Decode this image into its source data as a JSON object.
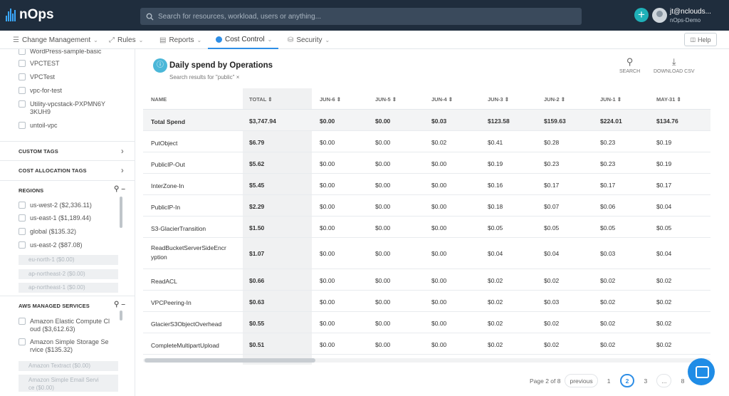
{
  "app": {
    "logo_text": "nOps"
  },
  "topbar": {
    "search_placeholder": "Search for resources, workload, users or anything...",
    "user_name": "jt@nclouds...",
    "user_org": "nOps-Demo"
  },
  "nav": {
    "items": [
      {
        "label": "Change Management"
      },
      {
        "label": "Rules"
      },
      {
        "label": "Reports"
      },
      {
        "label": "Cost Control"
      },
      {
        "label": "Security"
      }
    ],
    "help_label": "Help"
  },
  "sidebar": {
    "vpc_items": [
      {
        "label": "WordPress-sample-basic"
      },
      {
        "label": "VPCTEST"
      },
      {
        "label": "VPCTest"
      },
      {
        "label": "vpc-for-test"
      },
      {
        "label": "Utility-vpcstack-PXPMN6Y",
        "label2": "3KUH9"
      },
      {
        "label": "untoil-vpc"
      }
    ],
    "custom_tags_label": "CUSTOM TAGS",
    "cost_allocation_tags_label": "COST ALLOCATION TAGS",
    "regions_label": "REGIONS",
    "regions": [
      {
        "label": "us-west-2 ($2,336.11)"
      },
      {
        "label": "us-east-1 ($1,189.44)"
      },
      {
        "label": "global ($135.32)"
      },
      {
        "label": "us-east-2 ($87.08)"
      }
    ],
    "regions_dim": [
      {
        "label": "eu-north-1 ($0.00)"
      },
      {
        "label": "ap-northeast-2 ($0.00)"
      },
      {
        "label": "ap-northeast-1 ($0.00)"
      }
    ],
    "aws_services_label": "AWS MANAGED SERVICES",
    "services": [
      {
        "label": "Amazon Elastic Compute Cl",
        "label2": "oud ($3,612.63)"
      },
      {
        "label": "Amazon Simple Storage Se",
        "label2": "rvice ($135.32)"
      }
    ],
    "services_dim": [
      {
        "label": "Amazon Textract ($0.00)"
      },
      {
        "label": "Amazon Simple Email Servi",
        "label2": "ce ($0.00)"
      }
    ]
  },
  "main": {
    "title": "Daily spend by Operations",
    "subtitle": "Search results for \"public\" ×",
    "search_label": "SEARCH",
    "download_label": "DOWNLOAD CSV",
    "columns": [
      "NAME",
      "TOTAL",
      "JUN-6",
      "JUN-5",
      "JUN-4",
      "JUN-3",
      "JUN-2",
      "JUN-1",
      "MAY-31"
    ],
    "rows": [
      {
        "name": "Total Spend",
        "name2": "",
        "cells": [
          "$3,747.94",
          "$0.00",
          "$0.00",
          "$0.03",
          "$123.58",
          "$159.63",
          "$224.01",
          "$134.76"
        ]
      },
      {
        "name": "PutObject",
        "name2": "",
        "cells": [
          "$6.79",
          "$0.00",
          "$0.00",
          "$0.02",
          "$0.41",
          "$0.28",
          "$0.23",
          "$0.19"
        ]
      },
      {
        "name": "PublicIP-Out",
        "name2": "",
        "cells": [
          "$5.62",
          "$0.00",
          "$0.00",
          "$0.00",
          "$0.19",
          "$0.23",
          "$0.23",
          "$0.19"
        ]
      },
      {
        "name": "InterZone-In",
        "name2": "",
        "cells": [
          "$5.45",
          "$0.00",
          "$0.00",
          "$0.00",
          "$0.16",
          "$0.17",
          "$0.17",
          "$0.17"
        ]
      },
      {
        "name": "PublicIP-In",
        "name2": "",
        "cells": [
          "$2.29",
          "$0.00",
          "$0.00",
          "$0.00",
          "$0.18",
          "$0.07",
          "$0.06",
          "$0.04"
        ]
      },
      {
        "name": "S3-GlacierTransition",
        "name2": "",
        "cells": [
          "$1.50",
          "$0.00",
          "$0.00",
          "$0.00",
          "$0.05",
          "$0.05",
          "$0.05",
          "$0.05"
        ]
      },
      {
        "name": "ReadBucketServerSideEncr",
        "name2": "yption",
        "cells": [
          "$1.07",
          "$0.00",
          "$0.00",
          "$0.00",
          "$0.04",
          "$0.04",
          "$0.03",
          "$0.04"
        ]
      },
      {
        "name": "ReadACL",
        "name2": "",
        "cells": [
          "$0.66",
          "$0.00",
          "$0.00",
          "$0.00",
          "$0.02",
          "$0.02",
          "$0.02",
          "$0.02"
        ]
      },
      {
        "name": "VPCPeering-In",
        "name2": "",
        "cells": [
          "$0.63",
          "$0.00",
          "$0.00",
          "$0.00",
          "$0.02",
          "$0.03",
          "$0.02",
          "$0.02"
        ]
      },
      {
        "name": "GlacierS3ObjectOverhead",
        "name2": "",
        "cells": [
          "$0.55",
          "$0.00",
          "$0.00",
          "$0.00",
          "$0.02",
          "$0.02",
          "$0.02",
          "$0.02"
        ]
      },
      {
        "name": "CompleteMultipartUpload",
        "name2": "",
        "cells": [
          "$0.51",
          "$0.00",
          "$0.00",
          "$0.00",
          "$0.02",
          "$0.02",
          "$0.02",
          "$0.02"
        ]
      }
    ]
  },
  "pagination": {
    "status": "Page 2 of 8",
    "previous_label": "previous",
    "pages": [
      "1",
      "2",
      "3",
      "...",
      "8"
    ],
    "current": "2"
  }
}
